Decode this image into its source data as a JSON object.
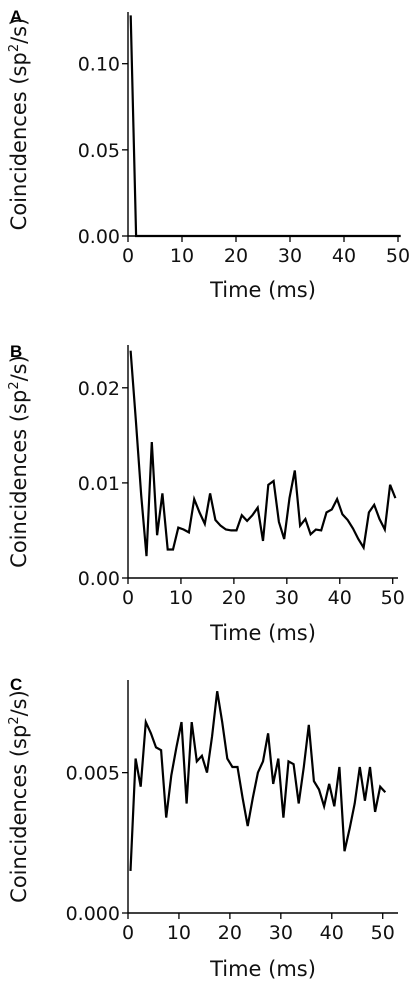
{
  "chart_data": [
    {
      "panel": "A",
      "type": "line",
      "xlabel": "Time (ms)",
      "ylabel": "Coincidences (sp²/s)",
      "ylabel_parts": [
        "Coincidences (sp",
        "2",
        "/s)"
      ],
      "xlim": [
        0,
        50
      ],
      "ylim": [
        0,
        0.13
      ],
      "xticks": [
        "0",
        "10",
        "20",
        "30",
        "40",
        "50"
      ],
      "yticks": [
        "0.00",
        "0.05",
        "0.10"
      ],
      "ytick_values": [
        0,
        0.05,
        0.1
      ],
      "x": [
        0.5,
        1.5,
        2.5,
        3.5,
        4.5,
        5.5,
        6.5,
        7.5,
        8.5,
        9.5,
        10.5,
        11.5,
        12.5,
        13.5,
        14.5,
        15.5,
        16.5,
        17.5,
        18.5,
        19.5,
        20.5,
        21.5,
        22.5,
        23.5,
        24.5,
        25.5,
        26.5,
        27.5,
        28.5,
        29.5,
        30.5,
        31.5,
        32.5,
        33.5,
        34.5,
        35.5,
        36.5,
        37.5,
        38.5,
        39.5,
        40.5,
        41.5,
        42.5,
        43.5,
        44.5,
        45.5,
        46.5,
        47.5,
        48.5,
        49.5,
        50.5
      ],
      "y": [
        0.128,
        0,
        0,
        0,
        0,
        0,
        0,
        0,
        0,
        0,
        0,
        0,
        0,
        0,
        0,
        0,
        0,
        0,
        0,
        0,
        0,
        0,
        0,
        0,
        0,
        0,
        0,
        0,
        0,
        0,
        0,
        0,
        0,
        0,
        0,
        0,
        0,
        0,
        0,
        0,
        0,
        0,
        0,
        0,
        0,
        0,
        0,
        0,
        0,
        0,
        0
      ]
    },
    {
      "panel": "B",
      "type": "line",
      "xlabel": "Time (ms)",
      "ylabel": "Coincidences (sp²/s)",
      "ylabel_parts": [
        "Coincidences (sp",
        "2",
        "/s)"
      ],
      "xlim": [
        0,
        51
      ],
      "ylim": [
        0,
        0.0245
      ],
      "xticks": [
        "0",
        "10",
        "20",
        "30",
        "40",
        "50"
      ],
      "yticks": [
        "0.00",
        "0.01",
        "0.02"
      ],
      "ytick_values": [
        0,
        0.01,
        0.02
      ],
      "x": [
        0.5,
        1.5,
        2.5,
        3.5,
        4.5,
        5.5,
        6.5,
        7.5,
        8.5,
        9.5,
        10.5,
        11.5,
        12.5,
        13.5,
        14.5,
        15.5,
        16.5,
        17.5,
        18.5,
        19.5,
        20.5,
        21.5,
        22.5,
        23.5,
        24.5,
        25.5,
        26.5,
        27.5,
        28.5,
        29.5,
        30.5,
        31.5,
        32.5,
        33.5,
        34.5,
        35.5,
        36.5,
        37.5,
        38.5,
        39.5,
        40.5,
        41.5,
        42.5,
        43.5,
        44.5,
        45.5,
        46.5,
        47.5,
        48.5,
        49.5,
        50.5
      ],
      "y": [
        0.0239,
        0.0165,
        0.0087,
        0.0023,
        0.0143,
        0.0045,
        0.0089,
        0.003,
        0.003,
        0.0053,
        0.0051,
        0.0048,
        0.0083,
        0.0069,
        0.0057,
        0.0089,
        0.0061,
        0.0055,
        0.0051,
        0.005,
        0.005,
        0.0066,
        0.006,
        0.0066,
        0.0074,
        0.0039,
        0.0098,
        0.0102,
        0.0059,
        0.0041,
        0.0084,
        0.0113,
        0.0055,
        0.0062,
        0.0046,
        0.0051,
        0.005,
        0.0069,
        0.0072,
        0.0083,
        0.0067,
        0.0061,
        0.0052,
        0.0041,
        0.0032,
        0.0069,
        0.0077,
        0.0062,
        0.0051,
        0.0098,
        0.0084
      ]
    },
    {
      "panel": "C",
      "type": "line",
      "xlabel": "Time (ms)",
      "ylabel": "Coincidences (sp²/s)",
      "ylabel_parts": [
        "Coincidences (sp",
        "2",
        "/s)"
      ],
      "xlim": [
        0,
        53
      ],
      "ylim": [
        0,
        0.0083
      ],
      "xticks": [
        "0",
        "10",
        "20",
        "30",
        "40",
        "50"
      ],
      "yticks": [
        "0.000",
        "0.005"
      ],
      "ytick_values": [
        0,
        0.005
      ],
      "x": [
        0.5,
        1.5,
        2.5,
        3.5,
        4.5,
        5.5,
        6.5,
        7.5,
        8.5,
        9.5,
        10.5,
        11.5,
        12.5,
        13.5,
        14.5,
        15.5,
        16.5,
        17.5,
        18.5,
        19.5,
        20.5,
        21.5,
        22.5,
        23.5,
        24.5,
        25.5,
        26.5,
        27.5,
        28.5,
        29.5,
        30.5,
        31.5,
        32.5,
        33.5,
        34.5,
        35.5,
        36.5,
        37.5,
        38.5,
        39.5,
        40.5,
        41.5,
        42.5,
        43.5,
        44.5,
        45.5,
        46.5,
        47.5,
        48.5,
        49.5,
        50.5
      ],
      "y": [
        0.0015,
        0.0055,
        0.0045,
        0.0068,
        0.0064,
        0.0059,
        0.0058,
        0.0034,
        0.0049,
        0.0059,
        0.0068,
        0.0039,
        0.0068,
        0.0054,
        0.0056,
        0.005,
        0.0063,
        0.0079,
        0.0068,
        0.0055,
        0.0052,
        0.0052,
        0.0041,
        0.0031,
        0.0041,
        0.005,
        0.0054,
        0.0064,
        0.0046,
        0.0055,
        0.0034,
        0.0054,
        0.0053,
        0.0039,
        0.0052,
        0.0067,
        0.0047,
        0.0044,
        0.0038,
        0.0046,
        0.0038,
        0.0052,
        0.0022,
        0.003,
        0.0039,
        0.0052,
        0.004,
        0.0052,
        0.0036,
        0.0045,
        0.0043
      ]
    }
  ]
}
